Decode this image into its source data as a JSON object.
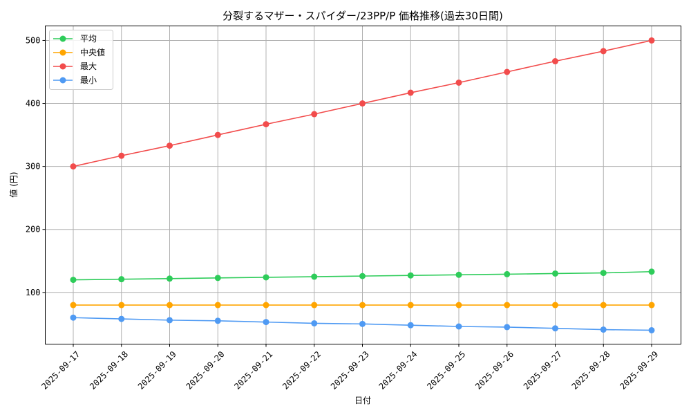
{
  "chart_data": {
    "type": "line",
    "title": "分裂するマザー・スパイダー/23PP/P 価格推移(過去30日間)",
    "xlabel": "日付",
    "ylabel": "値 (円)",
    "categories": [
      "2025-09-17",
      "2025-09-18",
      "2025-09-19",
      "2025-09-20",
      "2025-09-21",
      "2025-09-22",
      "2025-09-23",
      "2025-09-24",
      "2025-09-25",
      "2025-09-26",
      "2025-09-27",
      "2025-09-28",
      "2025-09-29"
    ],
    "ylim": [
      18,
      523
    ],
    "yticks": [
      100,
      200,
      300,
      400,
      500
    ],
    "grid": true,
    "legend_position": "top-left",
    "series": [
      {
        "name": "平均",
        "color": "#2ecc5a",
        "values": [
          120,
          121,
          122,
          123,
          124,
          125,
          126,
          127,
          128,
          129,
          130,
          131,
          133
        ]
      },
      {
        "name": "中央値",
        "color": "#ffa500",
        "values": [
          80,
          80,
          80,
          80,
          80,
          80,
          80,
          80,
          80,
          80,
          80,
          80,
          80
        ]
      },
      {
        "name": "最大",
        "color": "#f24c4c",
        "values": [
          300,
          317,
          333,
          350,
          367,
          383,
          400,
          417,
          433,
          450,
          467,
          483,
          500
        ]
      },
      {
        "name": "最小",
        "color": "#4f9af3",
        "values": [
          60,
          58,
          56,
          55,
          53,
          51,
          50,
          48,
          46,
          45,
          43,
          41,
          40
        ]
      }
    ]
  }
}
